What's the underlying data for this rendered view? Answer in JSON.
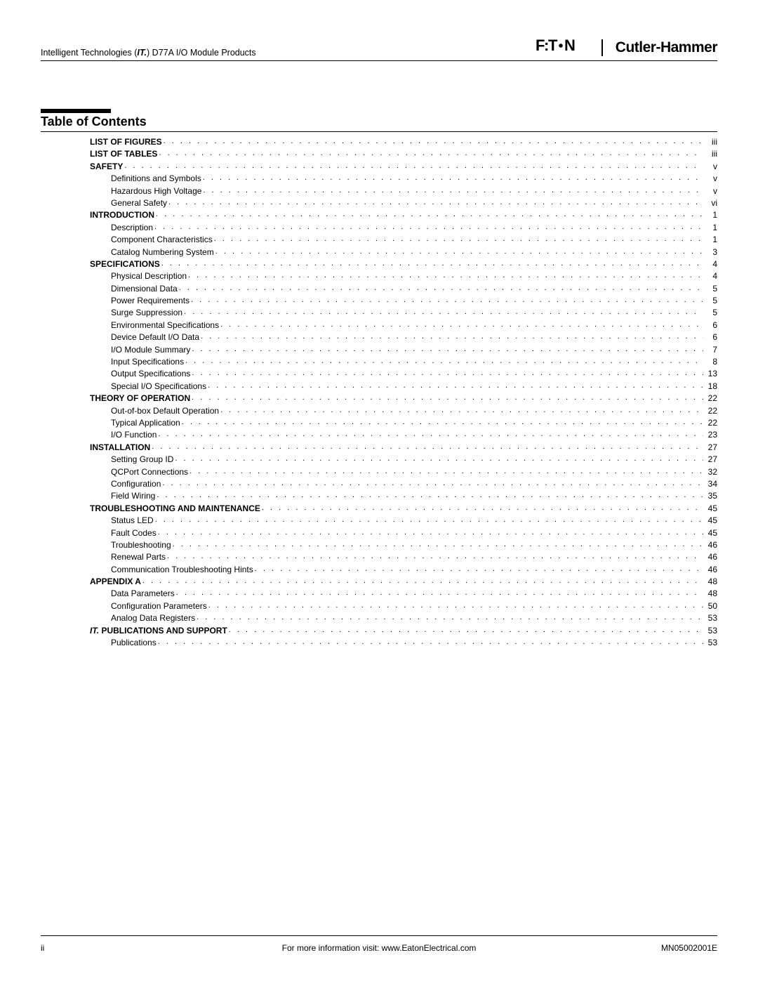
{
  "header": {
    "product_line_prefix": "Intelligent Technologies (",
    "product_line_it": "IT.",
    "product_line_suffix": ") D77A I/O Module Products",
    "logo_eaton": "E•T•N",
    "logo_cutler": "Cutler-Hammer"
  },
  "title": "Table of Contents",
  "toc": [
    {
      "level": 0,
      "bold": true,
      "label": "LIST OF FIGURES",
      "page": "iii"
    },
    {
      "level": 0,
      "bold": true,
      "label": "LIST OF TABLES",
      "page": "iii"
    },
    {
      "level": 0,
      "bold": true,
      "label": "SAFETY",
      "page": "v"
    },
    {
      "level": 1,
      "bold": false,
      "label": "Definitions and Symbols",
      "page": "v"
    },
    {
      "level": 1,
      "bold": false,
      "label": "Hazardous High Voltage",
      "page": "v"
    },
    {
      "level": 1,
      "bold": false,
      "label": "General Safety",
      "page": "vi"
    },
    {
      "level": 0,
      "bold": true,
      "label": "INTRODUCTION",
      "page": "1"
    },
    {
      "level": 1,
      "bold": false,
      "label": "Description",
      "page": "1"
    },
    {
      "level": 1,
      "bold": false,
      "label": "Component Characteristics",
      "page": "1"
    },
    {
      "level": 1,
      "bold": false,
      "label": "Catalog Numbering System",
      "page": "3"
    },
    {
      "level": 0,
      "bold": true,
      "label": "SPECIFICATIONS",
      "page": "4"
    },
    {
      "level": 1,
      "bold": false,
      "label": "Physical Description",
      "page": "4"
    },
    {
      "level": 1,
      "bold": false,
      "label": "Dimensional Data",
      "page": "5"
    },
    {
      "level": 1,
      "bold": false,
      "label": "Power Requirements",
      "page": "5"
    },
    {
      "level": 1,
      "bold": false,
      "label": "Surge Suppression",
      "page": "5"
    },
    {
      "level": 1,
      "bold": false,
      "label": "Environmental Specifications",
      "page": "6"
    },
    {
      "level": 1,
      "bold": false,
      "label": "Device Default I/O Data",
      "page": "6"
    },
    {
      "level": 1,
      "bold": false,
      "label": "I/O Module Summary",
      "page": "7"
    },
    {
      "level": 1,
      "bold": false,
      "label": "Input Specifications",
      "page": "8"
    },
    {
      "level": 1,
      "bold": false,
      "label": "Output Specifications",
      "page": "13"
    },
    {
      "level": 1,
      "bold": false,
      "label": "Special I/O Specifications",
      "page": "18"
    },
    {
      "level": 0,
      "bold": true,
      "label": "THEORY OF OPERATION",
      "page": "22"
    },
    {
      "level": 1,
      "bold": false,
      "label": "Out-of-box Default Operation",
      "page": "22"
    },
    {
      "level": 1,
      "bold": false,
      "label": "Typical Application",
      "page": "22"
    },
    {
      "level": 1,
      "bold": false,
      "label": "I/O Function",
      "page": "23"
    },
    {
      "level": 0,
      "bold": true,
      "label": "INSTALLATION",
      "page": "27"
    },
    {
      "level": 1,
      "bold": false,
      "label": "Setting Group ID",
      "page": "27"
    },
    {
      "level": 1,
      "bold": false,
      "label": "QCPort Connections",
      "page": "32"
    },
    {
      "level": 1,
      "bold": false,
      "label": "Configuration",
      "page": "34"
    },
    {
      "level": 1,
      "bold": false,
      "label": "Field Wiring",
      "page": "35"
    },
    {
      "level": 0,
      "bold": true,
      "label": "TROUBLESHOOTING AND MAINTENANCE",
      "page": "45"
    },
    {
      "level": 1,
      "bold": false,
      "label": "Status LED",
      "page": "45"
    },
    {
      "level": 1,
      "bold": false,
      "label": "Fault Codes",
      "page": "45"
    },
    {
      "level": 1,
      "bold": false,
      "label": "Troubleshooting",
      "page": "46"
    },
    {
      "level": 1,
      "bold": false,
      "label": "Renewal Parts",
      "page": "46"
    },
    {
      "level": 1,
      "bold": false,
      "label": "Communication Troubleshooting Hints",
      "page": "46"
    },
    {
      "level": 0,
      "bold": true,
      "label": "APPENDIX A",
      "page": "48"
    },
    {
      "level": 1,
      "bold": false,
      "label": "Data Parameters",
      "page": "48"
    },
    {
      "level": 1,
      "bold": false,
      "label": "Configuration Parameters",
      "page": "50"
    },
    {
      "level": 1,
      "bold": false,
      "label": "Analog Data Registers",
      "page": "53"
    },
    {
      "level": 0,
      "bold": true,
      "italic_prefix": "IT.",
      "label": " PUBLICATIONS AND SUPPORT",
      "page": "53"
    },
    {
      "level": 1,
      "bold": false,
      "label": "Publications",
      "page": "53"
    }
  ],
  "footer": {
    "page_number": "ii",
    "center_text": "For more information visit: www.EatonElectrical.com",
    "doc_number": "MN05002001E"
  }
}
